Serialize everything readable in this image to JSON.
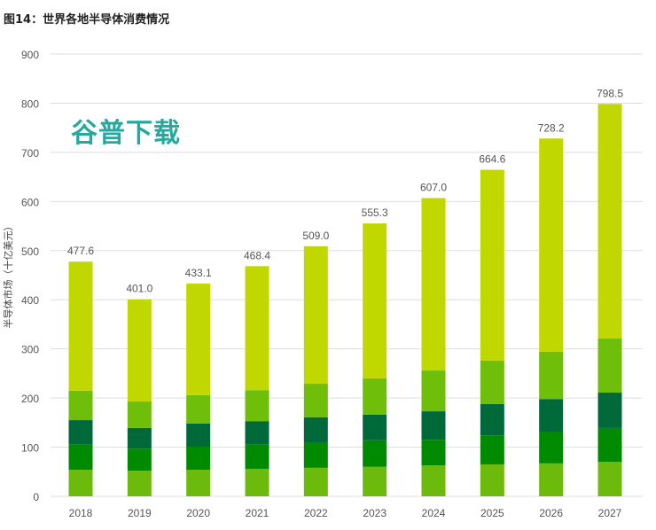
{
  "title": "图14：世界各地半导体消费情况",
  "watermark": "谷普下载",
  "chart_data": {
    "type": "bar",
    "stacked": true,
    "title": "图14：世界各地半导体消费情况",
    "xlabel": "",
    "ylabel": "半导体市场（十亿美元）",
    "ylim": [
      0,
      900
    ],
    "yticks": [
      0,
      100,
      200,
      300,
      400,
      500,
      600,
      700,
      800,
      900
    ],
    "grid": true,
    "legend": "none",
    "categories": [
      "2018",
      "2019",
      "2020",
      "2021",
      "2022",
      "2023",
      "2024",
      "2025",
      "2026",
      "2027"
    ],
    "series": [
      {
        "color": "#6cbb0c",
        "values": [
          54,
          52,
          54,
          56,
          58,
          60,
          63,
          65,
          67,
          70
        ]
      },
      {
        "color": "#008a00",
        "values": [
          51,
          45,
          47,
          49,
          52,
          54,
          52,
          59,
          63,
          69
        ]
      },
      {
        "color": "#00693a",
        "values": [
          50,
          42,
          47,
          48,
          51,
          52,
          58,
          64,
          68,
          72
        ]
      },
      {
        "color": "#6fbe0a",
        "values": [
          60,
          54,
          58,
          63,
          68,
          74,
          83,
          88,
          96,
          110
        ]
      },
      {
        "color": "#c1d800",
        "values": [
          262.6,
          208,
          227.1,
          252.4,
          280,
          315.3,
          351,
          388.6,
          434.2,
          477.5
        ]
      }
    ],
    "totals": [
      "477.6",
      "401.0",
      "433.1",
      "468.4",
      "509.0",
      "555.3",
      "607.0",
      "664.6",
      "728.2",
      "798.5"
    ]
  }
}
